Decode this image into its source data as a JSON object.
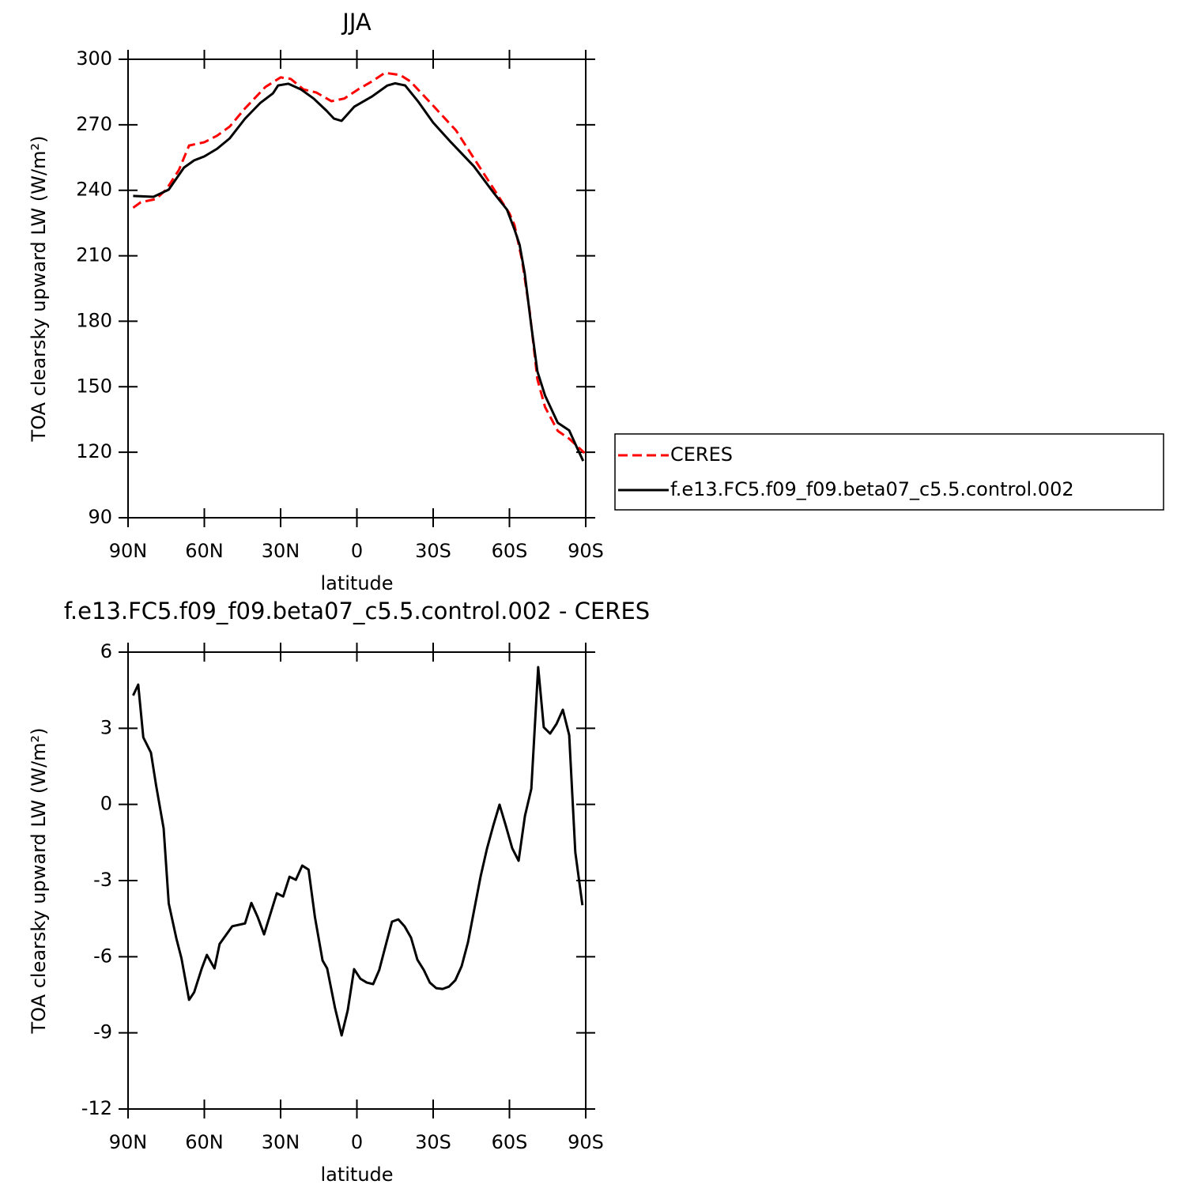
{
  "chart_data": [
    {
      "type": "line",
      "title": "JJA",
      "xlabel": "latitude",
      "ylabel": "TOA clearsky upward LW (W/m²)",
      "xlim": [
        90,
        -90
      ],
      "xticks": [
        {
          "value": 90,
          "label": "90N"
        },
        {
          "value": 60,
          "label": "60N"
        },
        {
          "value": 30,
          "label": "30N"
        },
        0,
        {
          "value": -30,
          "label": "30S"
        },
        {
          "value": -60,
          "label": "60S"
        },
        {
          "value": -90,
          "label": "90S"
        }
      ],
      "ylim": [
        90,
        300
      ],
      "yticks": [
        90,
        120,
        150,
        180,
        210,
        240,
        270,
        300
      ],
      "legend": "right",
      "series": [
        {
          "name": "CERES",
          "color": "#ff0000",
          "linestyle": "dashed",
          "x": [
            88,
            85,
            79,
            75,
            70,
            66,
            60,
            55,
            50,
            44,
            36,
            30,
            26,
            21,
            16,
            10,
            5,
            -1,
            -6,
            -11,
            -17,
            -21,
            -29,
            -39,
            -46,
            -54,
            -60,
            -62,
            -65,
            -68,
            -71,
            -74,
            -79,
            -83.5,
            -89.5
          ],
          "values": [
            232,
            234.5,
            236,
            240.3,
            249.3,
            260.5,
            262,
            265,
            269.2,
            277.5,
            287.3,
            291.7,
            291,
            286.2,
            284.8,
            280.8,
            282,
            286.6,
            289.9,
            293.8,
            292.8,
            289.9,
            280,
            267.4,
            254.7,
            240.3,
            229.4,
            224,
            207.7,
            184.2,
            153.4,
            140.7,
            129.8,
            126.2,
            119.7
          ]
        },
        {
          "name": "f.e13.FC5.f09_f09.beta07_c5.5.control.002",
          "color": "#000000",
          "linestyle": "solid",
          "x": [
            88,
            80,
            74,
            68,
            64,
            60,
            55,
            50,
            44,
            38,
            33,
            31,
            27,
            22,
            17,
            12,
            9,
            6,
            1,
            -6,
            -12,
            -15,
            -19,
            -24,
            -30,
            -37,
            -46,
            -54,
            -59,
            -62,
            -64,
            -66,
            -68.5,
            -71,
            -74,
            -79,
            -83.5,
            -87,
            -89
          ],
          "values": [
            237.4,
            237,
            240.3,
            250.4,
            253.7,
            255.5,
            259,
            263.8,
            272.8,
            280,
            284.4,
            288,
            288.8,
            286.2,
            282,
            276.5,
            272.8,
            271.8,
            278.3,
            283,
            288,
            289,
            288,
            280.8,
            271,
            262,
            251,
            238.5,
            231.2,
            222,
            215,
            202,
            178.7,
            157,
            146,
            133.5,
            130,
            121,
            116
          ]
        }
      ]
    },
    {
      "type": "line",
      "title": "f.e13.FC5.f09_f09.beta07_c5.5.control.002 - CERES",
      "xlabel": "latitude",
      "ylabel": "TOA clearsky upward LW (W/m²)",
      "xlim": [
        90,
        -90
      ],
      "xticks": [
        {
          "value": 90,
          "label": "90N"
        },
        {
          "value": 60,
          "label": "60N"
        },
        {
          "value": 30,
          "label": "30N"
        },
        0,
        {
          "value": -30,
          "label": "30S"
        },
        {
          "value": -60,
          "label": "60S"
        },
        {
          "value": -90,
          "label": "90S"
        }
      ],
      "ylim": [
        -12,
        6
      ],
      "yticks": [
        -12,
        -9,
        -6,
        -3,
        0,
        3,
        6
      ],
      "series": [
        {
          "color": "#000000",
          "linestyle": "solid",
          "x": [
            88,
            86,
            84,
            81,
            79,
            76,
            74,
            71,
            69,
            66,
            64,
            61,
            59,
            56,
            54,
            49,
            44,
            41.5,
            39,
            36.5,
            34,
            31.5,
            29,
            26.5,
            24,
            21.5,
            19,
            16.5,
            13.5,
            11.7,
            8.6,
            6,
            3.6,
            1.1,
            -1.4,
            -3.9,
            -6.4,
            -8.8,
            -11.3,
            -13.8,
            -16.3,
            -18.8,
            -21.3,
            -23.8,
            -26.3,
            -28.7,
            -31.2,
            -33.7,
            -36.2,
            -38.7,
            -41.2,
            -43.7,
            -46.2,
            -48.7,
            -51.2,
            -53.6,
            -56.1,
            -58.6,
            -61.1,
            -63.6,
            -66.1,
            -68.6,
            -71.3,
            -73.5,
            -76,
            -78.5,
            -81,
            -83.5,
            -85.9,
            -88.7
          ],
          "values": [
            4.29,
            4.72,
            2.64,
            2.04,
            0.77,
            -0.95,
            -3.9,
            -5.28,
            -6.06,
            -7.7,
            -7.4,
            -6.46,
            -5.93,
            -6.46,
            -5.5,
            -4.8,
            -4.69,
            -3.88,
            -4.44,
            -5.12,
            -4.31,
            -3.5,
            -3.63,
            -2.85,
            -2.97,
            -2.41,
            -2.57,
            -4.44,
            -6.15,
            -6.46,
            -8.02,
            -9.1,
            -8.11,
            -6.49,
            -6.87,
            -7.02,
            -7.08,
            -6.52,
            -5.56,
            -4.62,
            -4.53,
            -4.81,
            -5.25,
            -6.12,
            -6.52,
            -7.02,
            -7.24,
            -7.27,
            -7.18,
            -6.93,
            -6.37,
            -5.43,
            -4.12,
            -2.82,
            -1.73,
            -0.85,
            -0.01,
            -0.85,
            -1.73,
            -2.22,
            -0.45,
            0.61,
            5.41,
            3.04,
            2.79,
            3.17,
            3.73,
            2.73,
            -1.88,
            -3.97
          ]
        }
      ]
    }
  ]
}
